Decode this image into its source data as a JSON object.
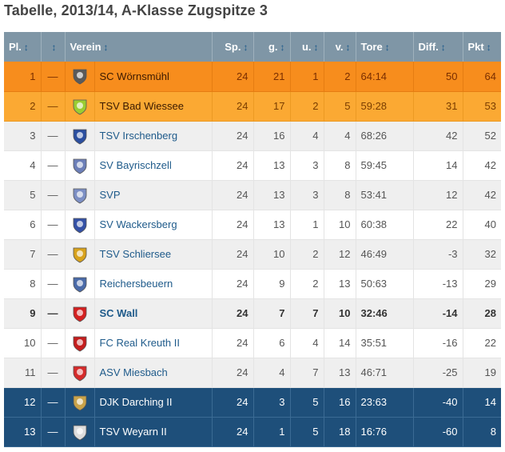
{
  "page": {
    "title": "Tabelle, 2013/14, A-Klasse Zugspitze 3"
  },
  "table": {
    "headers": {
      "pl": "Pl.",
      "verein": "Verein",
      "sp": "Sp.",
      "g": "g.",
      "u": "u.",
      "v": "v.",
      "tore": "Tore",
      "diff": "Diff.",
      "pkt": "Pkt"
    },
    "sort_icon": "sort-arrows-icon",
    "rows": [
      {
        "pl": "1",
        "trend": "—",
        "club": "SC Wörnsmühl",
        "sp": "24",
        "g": "21",
        "u": "1",
        "v": "2",
        "tore": "64:14",
        "diff": "50",
        "pkt": "64",
        "style": "orange1",
        "crest": "#5a5a5a"
      },
      {
        "pl": "2",
        "trend": "—",
        "club": "TSV Bad Wiessee",
        "sp": "24",
        "g": "17",
        "u": "2",
        "v": "5",
        "tore": "59:28",
        "diff": "31",
        "pkt": "53",
        "style": "orange2",
        "crest": "#9acd32"
      },
      {
        "pl": "3",
        "trend": "—",
        "club": "TSV Irschenberg",
        "sp": "24",
        "g": "16",
        "u": "4",
        "v": "4",
        "tore": "68:26",
        "diff": "42",
        "pkt": "52",
        "style": "grey",
        "crest": "#2b4fa0"
      },
      {
        "pl": "4",
        "trend": "—",
        "club": "SV Bayrischzell",
        "sp": "24",
        "g": "13",
        "u": "3",
        "v": "8",
        "tore": "59:45",
        "diff": "14",
        "pkt": "42",
        "style": "light",
        "crest": "#6c7fb8"
      },
      {
        "pl": "5",
        "trend": "—",
        "club": "SVP",
        "sp": "24",
        "g": "13",
        "u": "3",
        "v": "8",
        "tore": "53:41",
        "diff": "12",
        "pkt": "42",
        "style": "grey",
        "crest": "#7c8fc4"
      },
      {
        "pl": "6",
        "trend": "—",
        "club": "SV Wackersberg",
        "sp": "24",
        "g": "13",
        "u": "1",
        "v": "10",
        "tore": "60:38",
        "diff": "22",
        "pkt": "40",
        "style": "light",
        "crest": "#3451a6"
      },
      {
        "pl": "7",
        "trend": "—",
        "club": "TSV Schliersee",
        "sp": "24",
        "g": "10",
        "u": "2",
        "v": "12",
        "tore": "46:49",
        "diff": "-3",
        "pkt": "32",
        "style": "grey",
        "crest": "#d8a21c"
      },
      {
        "pl": "8",
        "trend": "—",
        "club": "Reichersbeuern",
        "sp": "24",
        "g": "9",
        "u": "2",
        "v": "13",
        "tore": "50:63",
        "diff": "-13",
        "pkt": "29",
        "style": "light",
        "crest": "#4a6aa8"
      },
      {
        "pl": "9",
        "trend": "—",
        "club": "SC Wall",
        "sp": "24",
        "g": "7",
        "u": "7",
        "v": "10",
        "tore": "32:46",
        "diff": "-14",
        "pkt": "28",
        "style": "grey bold",
        "crest": "#d42020"
      },
      {
        "pl": "10",
        "trend": "—",
        "club": "FC Real Kreuth II",
        "sp": "24",
        "g": "6",
        "u": "4",
        "v": "14",
        "tore": "35:51",
        "diff": "-16",
        "pkt": "22",
        "style": "light",
        "crest": "#c41e1e"
      },
      {
        "pl": "11",
        "trend": "—",
        "club": "ASV Miesbach",
        "sp": "24",
        "g": "4",
        "u": "7",
        "v": "13",
        "tore": "46:71",
        "diff": "-25",
        "pkt": "19",
        "style": "grey",
        "crest": "#d52b2b"
      },
      {
        "pl": "12",
        "trend": "—",
        "club": "DJK Darching II",
        "sp": "24",
        "g": "3",
        "u": "5",
        "v": "16",
        "tore": "23:63",
        "diff": "-40",
        "pkt": "14",
        "style": "blue",
        "crest": "#c9a34a"
      },
      {
        "pl": "13",
        "trend": "—",
        "club": "TSV Weyarn II",
        "sp": "24",
        "g": "1",
        "u": "5",
        "v": "18",
        "tore": "16:76",
        "diff": "-60",
        "pkt": "8",
        "style": "blue",
        "crest": "#dddddd"
      }
    ]
  }
}
